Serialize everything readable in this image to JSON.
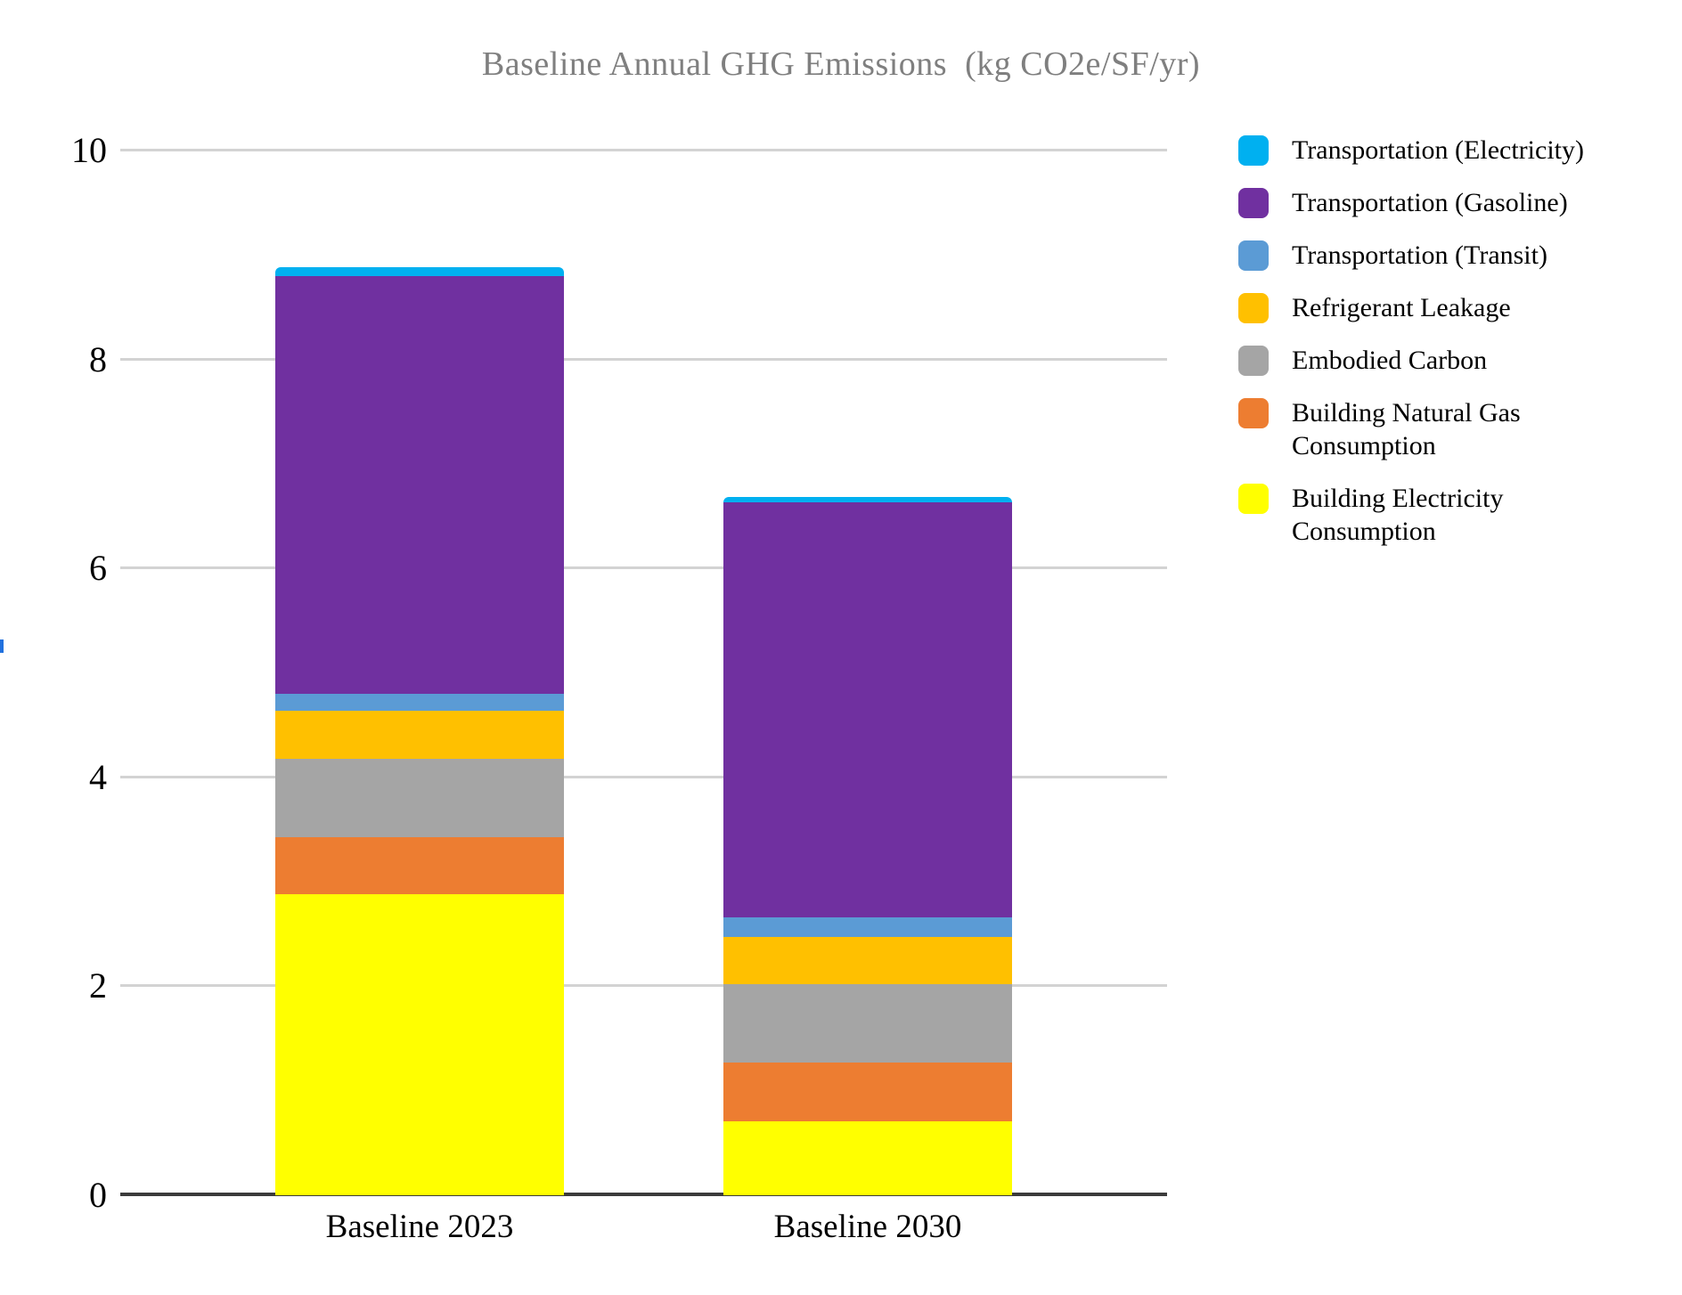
{
  "chart_data": {
    "type": "bar",
    "stacked": true,
    "title": "Baseline Annual GHG Emissions  (kg CO2e/SF/yr)",
    "xlabel": "",
    "ylabel": "",
    "categories": [
      "Baseline 2023",
      "Baseline 2030"
    ],
    "series": [
      {
        "name": "Transportation (Electricity)",
        "color": "#00B0F0",
        "values": [
          0.08,
          0.05
        ]
      },
      {
        "name": "Transportation (Gasoline)",
        "color": "#7030A0",
        "values": [
          4.0,
          3.97
        ]
      },
      {
        "name": "Transportation (Transit)",
        "color": "#5B9BD5",
        "values": [
          0.16,
          0.19
        ]
      },
      {
        "name": "Refrigerant Leakage",
        "color": "#FFC000",
        "values": [
          0.46,
          0.45
        ]
      },
      {
        "name": "Embodied Carbon",
        "color": "#A5A5A5",
        "values": [
          0.75,
          0.75
        ]
      },
      {
        "name": "Building Natural Gas Consumption",
        "color": "#ED7D31",
        "values": [
          0.55,
          0.56
        ]
      },
      {
        "name": "Building Electricity Consumption",
        "color": "#FFFF00",
        "values": [
          2.88,
          0.71
        ]
      }
    ],
    "totals": [
      8.88,
      6.68
    ],
    "ylim": [
      0,
      10
    ],
    "yticks": [
      0,
      2,
      4,
      6,
      8,
      10
    ],
    "grid": true,
    "legend_position": "right",
    "style": {
      "title_color": "#7F7F7F",
      "text_color": "#000000",
      "grid_color": "#D3D3D3",
      "axis_color": "#3B3B3B",
      "background": "#FFFFFF",
      "clipped_ylabel_mark_color": "#2171DE"
    }
  }
}
